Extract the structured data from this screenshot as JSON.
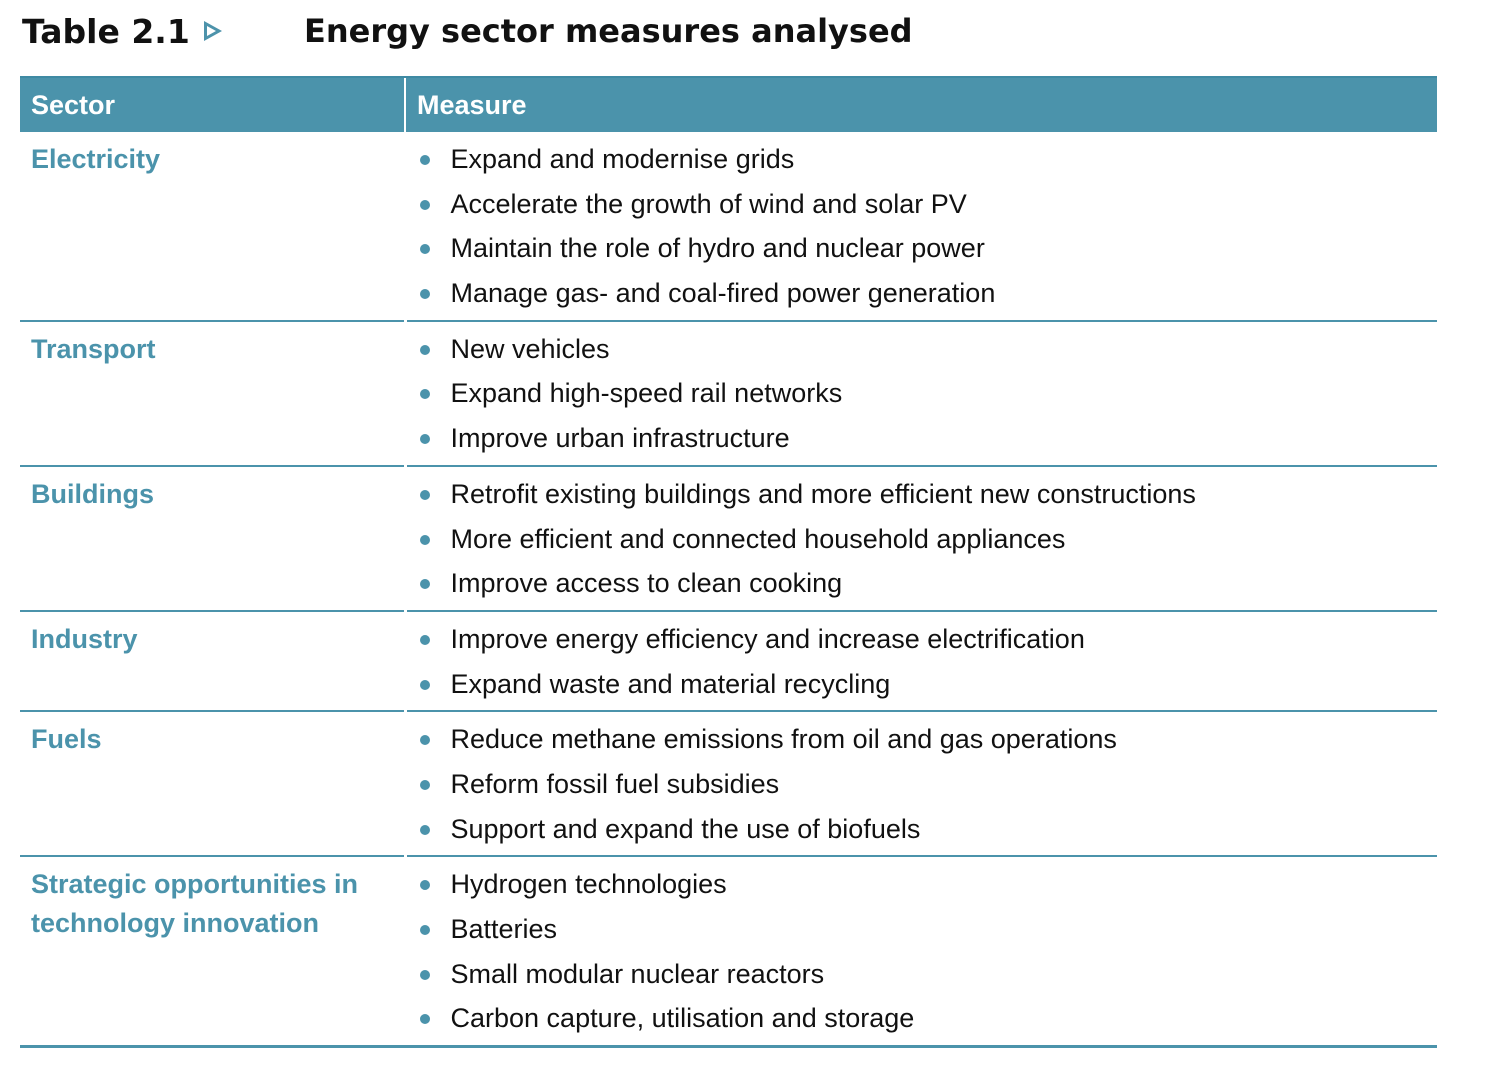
{
  "title": {
    "label": "Table 2.1",
    "text": "Energy sector measures analysed"
  },
  "colors": {
    "accent": "#4b93ab",
    "header_text": "#ffffff",
    "body_text": "#111111"
  },
  "table": {
    "headers": {
      "sector": "Sector",
      "measure": "Measure"
    },
    "rows": [
      {
        "sector": "Electricity",
        "measures": [
          "Expand and modernise grids",
          "Accelerate the growth of wind and solar PV",
          "Maintain the role of hydro and nuclear power",
          "Manage gas- and coal-fired power generation"
        ]
      },
      {
        "sector": "Transport",
        "measures": [
          "New vehicles",
          "Expand high-speed rail networks",
          "Improve urban infrastructure"
        ]
      },
      {
        "sector": "Buildings",
        "measures": [
          "Retrofit existing buildings and more efficient new constructions",
          "More efficient and connected household appliances",
          "Improve access to clean cooking"
        ]
      },
      {
        "sector": "Industry",
        "measures": [
          "Improve energy efficiency and increase electrification",
          "Expand waste and material recycling"
        ]
      },
      {
        "sector": "Fuels",
        "measures": [
          "Reduce methane emissions from oil and gas operations",
          "Reform fossil fuel subsidies",
          "Support and expand the use of biofuels"
        ]
      },
      {
        "sector": "Strategic opportunities in technology innovation",
        "measures": [
          "Hydrogen technologies",
          "Batteries",
          "Small modular nuclear reactors",
          "Carbon capture, utilisation and storage"
        ]
      }
    ]
  }
}
